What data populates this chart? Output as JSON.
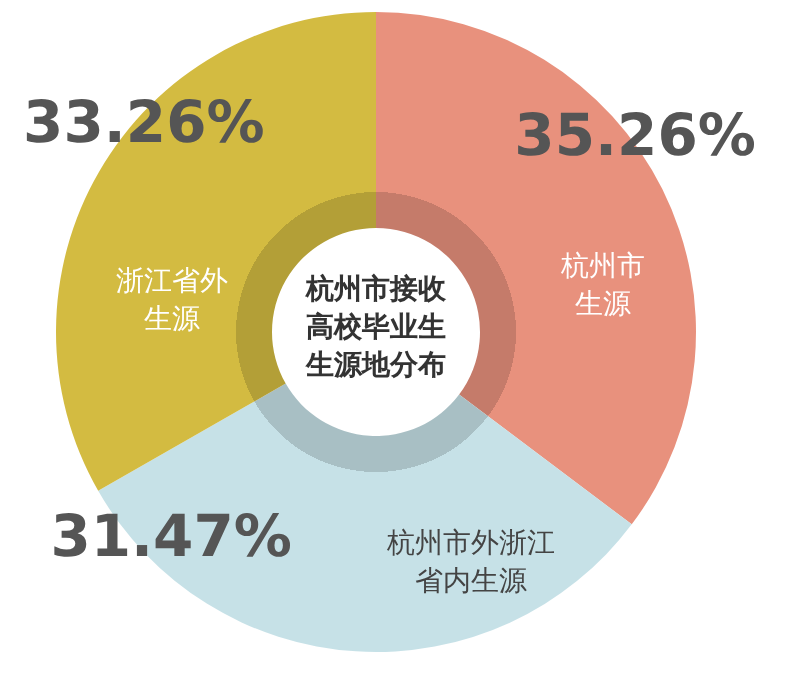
{
  "chart_data": {
    "type": "donut",
    "title": "杭州市接收高校毕业生生源地分布",
    "categories": [
      "杭州市生源",
      "杭州市外浙江省内生源",
      "浙江省外生源"
    ],
    "values": [
      35.26,
      31.47,
      33.26
    ],
    "colors": [
      "#e8917d",
      "#c6e1e7",
      "#d3bb41"
    ],
    "value_labels": [
      "35.26%",
      "31.47%",
      "33.26%"
    ]
  }
}
